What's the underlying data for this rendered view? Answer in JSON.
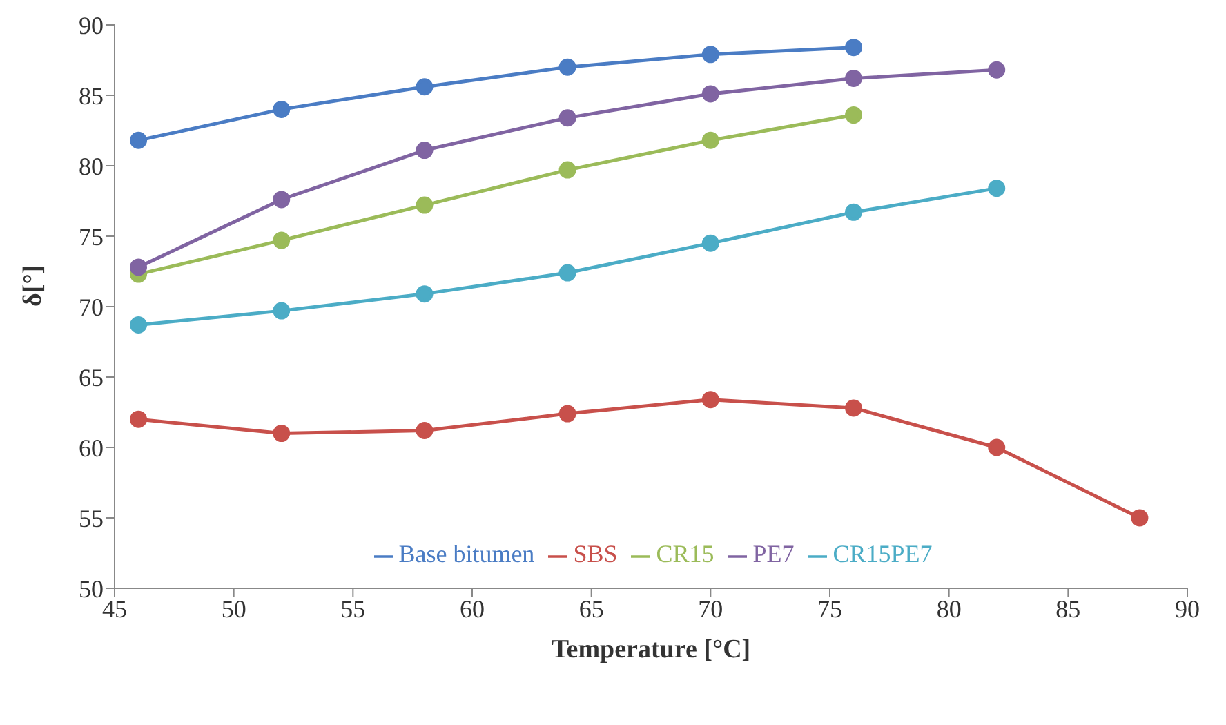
{
  "chart_data": {
    "type": "line",
    "xlabel": "Temperature [°C]",
    "ylabel": "δ[°]",
    "xlim": [
      45,
      90
    ],
    "xticks": [
      45,
      50,
      55,
      60,
      65,
      70,
      75,
      80,
      85,
      90
    ],
    "ylim": [
      50,
      90
    ],
    "yticks": [
      50,
      55,
      60,
      65,
      70,
      75,
      80,
      85,
      90
    ],
    "grid": false,
    "legend": "bottom",
    "marker": "circle",
    "series": [
      {
        "name": "Base bitumen",
        "color": "#4a7cc4",
        "x": [
          46,
          52,
          58,
          64,
          70,
          76
        ],
        "values": [
          81.8,
          84,
          85.6,
          87,
          87.9,
          88.4
        ]
      },
      {
        "name": "SBS",
        "color": "#c8504b",
        "x": [
          46,
          52,
          58,
          64,
          70,
          76,
          82,
          88
        ],
        "values": [
          62,
          61,
          61.2,
          62.4,
          63.4,
          62.8,
          60,
          55
        ]
      },
      {
        "name": "CR15",
        "color": "#9bbb59",
        "x": [
          46,
          52,
          58,
          64,
          70,
          76
        ],
        "values": [
          72.3,
          74.7,
          77.2,
          79.7,
          81.8,
          83.6
        ]
      },
      {
        "name": "PE7",
        "color": "#8064a2",
        "x": [
          46,
          52,
          58,
          64,
          70,
          76,
          82
        ],
        "values": [
          72.8,
          77.6,
          81.1,
          83.4,
          85.1,
          86.2,
          86.8
        ]
      },
      {
        "name": "CR15PE7",
        "color": "#4bacc6",
        "x": [
          46,
          52,
          58,
          64,
          70,
          76,
          82
        ],
        "values": [
          68.7,
          69.7,
          70.9,
          72.4,
          74.5,
          76.7,
          78.4
        ]
      }
    ]
  }
}
